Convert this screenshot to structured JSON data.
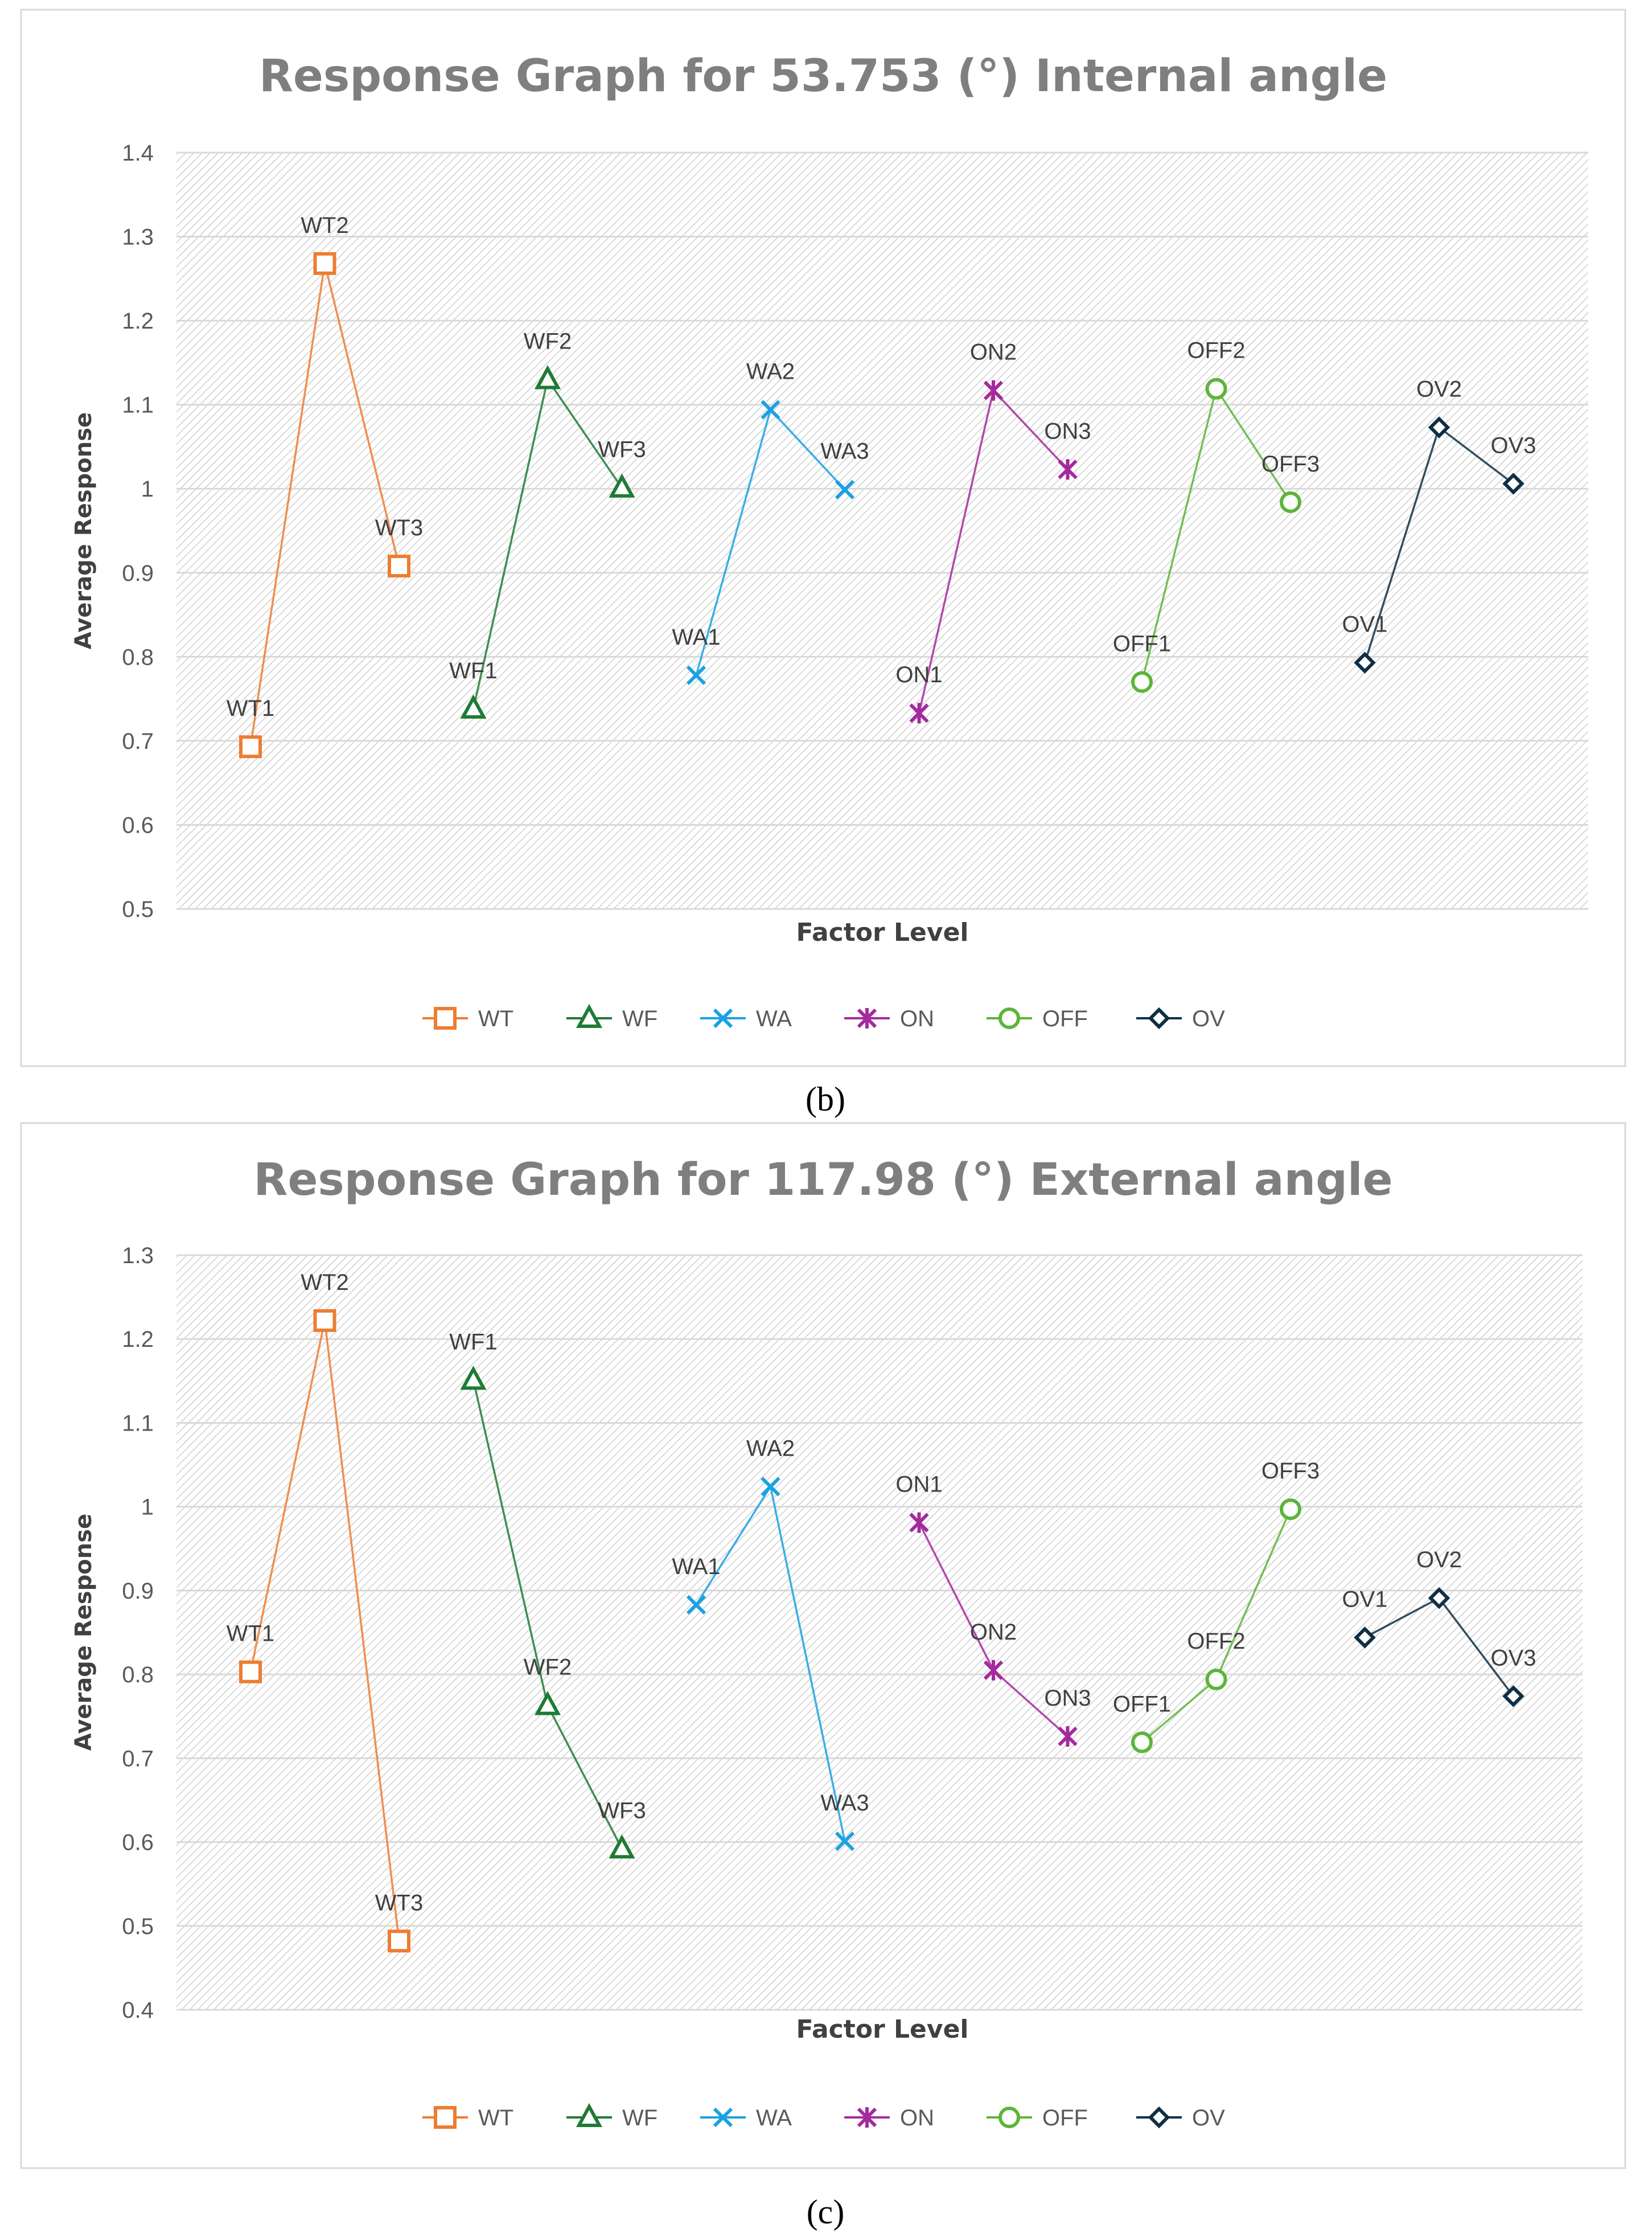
{
  "colors": {
    "WT": "#ED7D31",
    "WF": "#1E7B34",
    "WA": "#1BA1E2",
    "ON": "#A52A9E",
    "OFF": "#5DB43A",
    "OV": "#0E2F44"
  },
  "chart_data": [
    {
      "type": "line",
      "title": "Response Graph for 53.753 (°) Internal angle",
      "xlabel": "Factor Level",
      "ylabel": "Average Response",
      "ylim": [
        0.5,
        1.4
      ],
      "yticks": [
        "0.5",
        "0.6",
        "0.7",
        "0.8",
        "0.9",
        "1",
        "1.1",
        "1.2",
        "1.3",
        "1.4"
      ],
      "grid": true,
      "legend_position": "bottom",
      "caption": "(b)",
      "series": [
        {
          "name": "WT",
          "marker": "square",
          "labels": [
            "WT1",
            "WT2",
            "WT3"
          ],
          "values": [
            0.693,
            1.268,
            0.908
          ]
        },
        {
          "name": "WF",
          "marker": "triangle",
          "labels": [
            "WF1",
            "WF2",
            "WF3"
          ],
          "values": [
            0.738,
            1.13,
            1.001
          ]
        },
        {
          "name": "WA",
          "marker": "x",
          "labels": [
            "WA1",
            "WA2",
            "WA3"
          ],
          "values": [
            0.778,
            1.094,
            0.999
          ]
        },
        {
          "name": "ON",
          "marker": "star",
          "labels": [
            "ON1",
            "ON2",
            "ON3"
          ],
          "values": [
            0.733,
            1.117,
            1.023
          ]
        },
        {
          "name": "OFF",
          "marker": "circle",
          "labels": [
            "OFF1",
            "OFF2",
            "OFF3"
          ],
          "values": [
            0.77,
            1.119,
            0.984
          ]
        },
        {
          "name": "OV",
          "marker": "diamond",
          "labels": [
            "OV1",
            "OV2",
            "OV3"
          ],
          "values": [
            0.793,
            1.073,
            1.006
          ]
        }
      ]
    },
    {
      "type": "line",
      "title": "Response Graph for 117.98 (°) External angle",
      "xlabel": "Factor Level",
      "ylabel": "Average Response",
      "ylim": [
        0.4,
        1.3
      ],
      "yticks": [
        "0.4",
        "0.5",
        "0.6",
        "0.7",
        "0.8",
        "0.9",
        "1",
        "1.1",
        "1.2",
        "1.3"
      ],
      "grid": true,
      "legend_position": "bottom",
      "caption": "(c)",
      "series": [
        {
          "name": "WT",
          "marker": "square",
          "labels": [
            "WT1",
            "WT2",
            "WT3"
          ],
          "values": [
            0.803,
            1.222,
            0.482
          ]
        },
        {
          "name": "WF",
          "marker": "triangle",
          "labels": [
            "WF1",
            "WF2",
            "WF3"
          ],
          "values": [
            1.151,
            0.763,
            0.592
          ]
        },
        {
          "name": "WA",
          "marker": "x",
          "labels": [
            "WA1",
            "WA2",
            "WA3"
          ],
          "values": [
            0.883,
            1.024,
            0.601
          ]
        },
        {
          "name": "ON",
          "marker": "star",
          "labels": [
            "ON1",
            "ON2",
            "ON3"
          ],
          "values": [
            0.981,
            0.805,
            0.726
          ]
        },
        {
          "name": "OFF",
          "marker": "circle",
          "labels": [
            "OFF1",
            "OFF2",
            "OFF3"
          ],
          "values": [
            0.719,
            0.794,
            0.997
          ]
        },
        {
          "name": "OV",
          "marker": "diamond",
          "labels": [
            "OV1",
            "OV2",
            "OV3"
          ],
          "values": [
            0.844,
            0.891,
            0.774
          ]
        }
      ]
    }
  ]
}
